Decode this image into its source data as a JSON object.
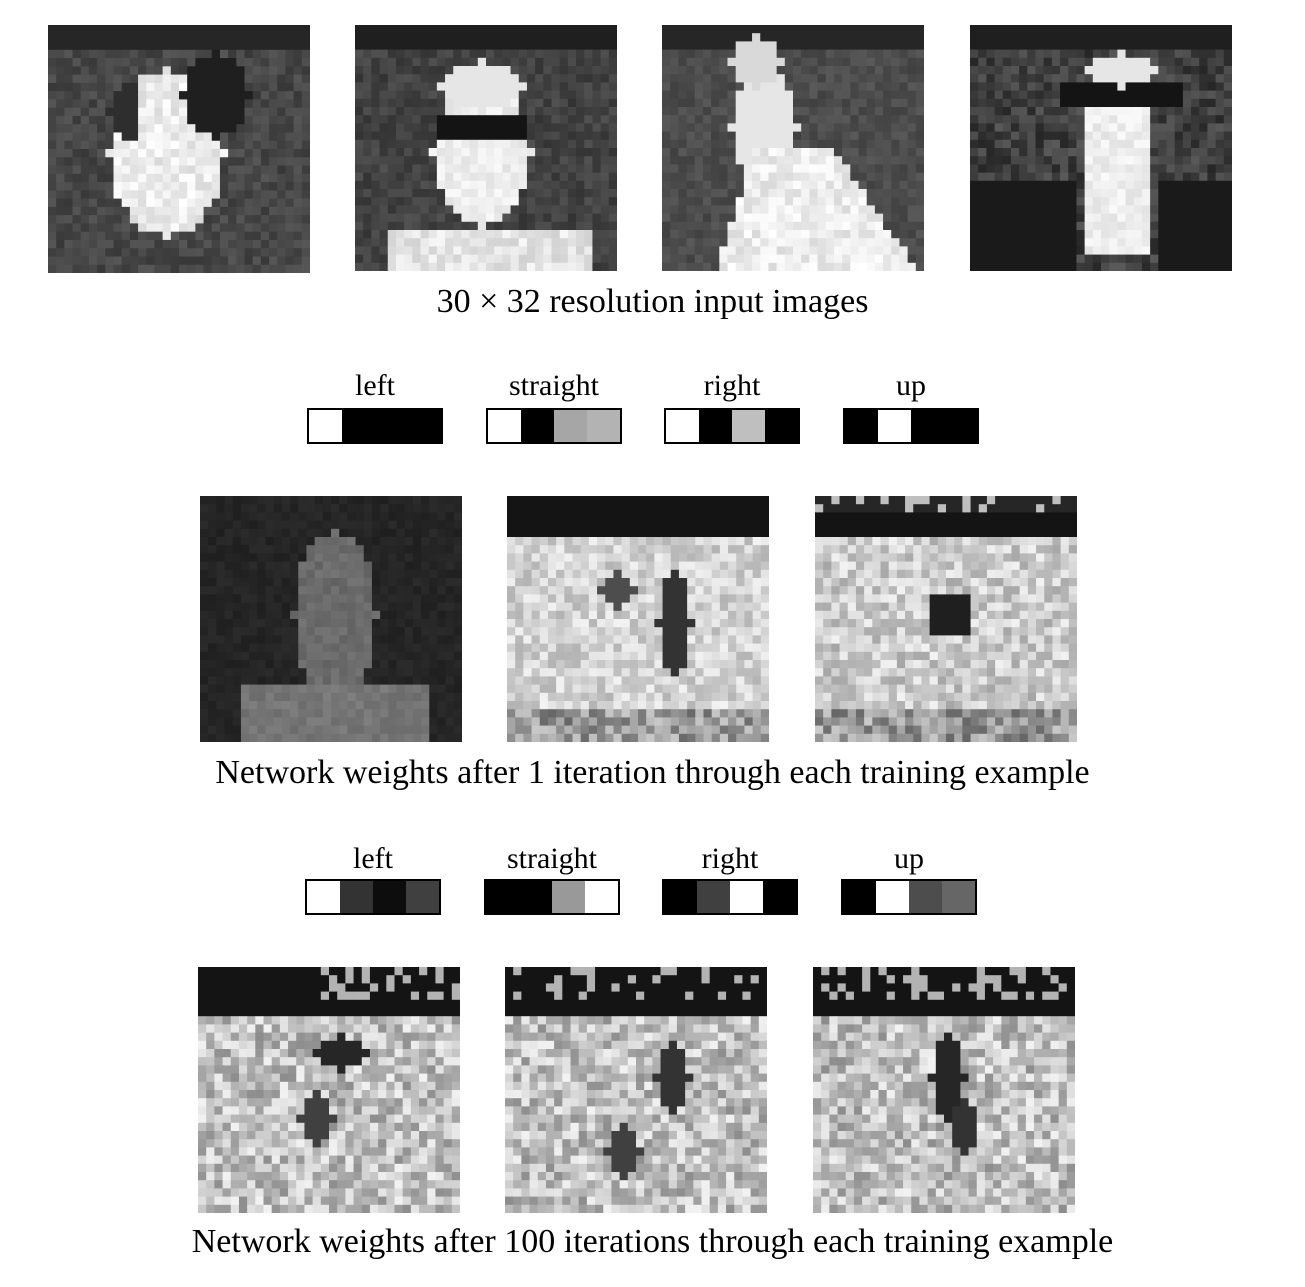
{
  "captions": {
    "inputs": "30 × 32 resolution input images",
    "iter1": "Network weights after 1 iteration through each training example",
    "iter100": "Network weights after 100 iterations through each training example"
  },
  "outputs": {
    "iter1": [
      {
        "label": "left",
        "cells": [
          1.0,
          0.0,
          0.0,
          0.0
        ]
      },
      {
        "label": "straight",
        "cells": [
          1.0,
          0.0,
          0.65,
          0.7
        ]
      },
      {
        "label": "right",
        "cells": [
          1.0,
          0.0,
          0.75,
          0.0
        ]
      },
      {
        "label": "up",
        "cells": [
          0.0,
          1.0,
          0.0,
          0.0
        ]
      }
    ],
    "iter100": [
      {
        "label": "left",
        "cells": [
          1.0,
          0.2,
          0.05,
          0.25
        ]
      },
      {
        "label": "straight",
        "cells": [
          0.0,
          0.0,
          0.6,
          1.0
        ]
      },
      {
        "label": "right",
        "cells": [
          0.0,
          0.25,
          1.0,
          0.0
        ]
      },
      {
        "label": "up",
        "cells": [
          0.0,
          1.0,
          0.3,
          0.4
        ]
      }
    ]
  }
}
